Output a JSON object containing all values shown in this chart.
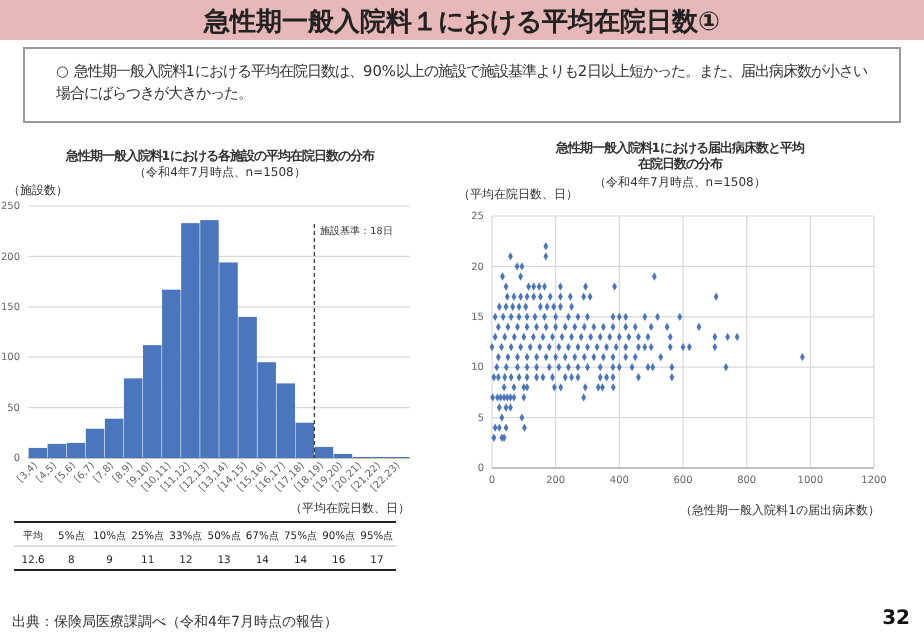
{
  "chart_data": [
    {
      "type": "other",
      "title": "急性期一般入院料１における平均在院日数①",
      "annotations": [
        "○ 急性期一般入院料1における平均在院日数は、90%以上の施設で施設基準よりも2日以上短かった。また、届出病床数が小さい場合にばらつきが大きかった。",
        "出典：保険局医療課調べ（令和4年7月時点の報告）",
        "32"
      ]
    },
    {
      "type": "bar",
      "title": "急性期一般入院料1における各施設の平均在院日数の分布",
      "subtitle": "（令和4年7月時点、n=1508）",
      "ylabel": "（施設数）",
      "xlabel": "（平均在院日数、日）",
      "color": "#4a76be",
      "categories": [
        "[3,4)",
        "[4,5)",
        "[5,6)",
        "[6,7)",
        "[7,8)",
        "[8,9)",
        "[9,10)",
        "[10,11)",
        "[11,12)",
        "[12,13)",
        "[13,14)",
        "[14,15)",
        "[15,16)",
        "[16,17)",
        "[17,18)",
        "[18,19)",
        "[19,20)",
        "[20,21)",
        "[21,22)",
        "[22,23)"
      ],
      "values": [
        10,
        14,
        15,
        29,
        39,
        79,
        112,
        167,
        233,
        236,
        194,
        140,
        95,
        74,
        35,
        11,
        4,
        1,
        1,
        1
      ],
      "ylim": [
        0,
        250
      ],
      "yticks": [
        0,
        50,
        100,
        150,
        200,
        250
      ],
      "grid": "y",
      "ref_lines": [
        {
          "axis": "x",
          "value": "[18,19)",
          "label": "施設基準：18日",
          "line_style": "dashed",
          "color": "#404040"
        }
      ],
      "annotations": [
        "平均",
        "5%点",
        "10%点",
        "25%点",
        "33%点",
        "50%点",
        "67%点",
        "75%点",
        "90%点",
        "95%点",
        "12.6",
        "8",
        "9",
        "11",
        "12",
        "13",
        "14",
        "14",
        "16",
        "17"
      ]
    },
    {
      "type": "scatter",
      "title": "急性期一般入院料1における届出病床数と平均在院日数の分布",
      "subtitle": "（令和4年7月時点、n=1508）",
      "ylabel": "（平均在院日数、日）",
      "xlabel": "（急性期一般入院料1の届出病床数）",
      "color": "#4a76be",
      "marker": "diamond",
      "x": [
        169,
        58,
        169,
        79,
        94,
        33,
        90,
        510,
        44,
        115,
        131,
        148,
        165,
        215,
        294,
        385,
        48,
        69,
        90,
        110,
        131,
        152,
        183,
        215,
        246,
        288,
        308,
        704,
        23,
        44,
        65,
        85,
        106,
        152,
        173,
        194,
        215,
        250,
        10,
        35,
        60,
        85,
        110,
        135,
        165,
        200,
        240,
        270,
        300,
        380,
        400,
        420,
        480,
        520,
        590,
        20,
        50,
        80,
        110,
        140,
        170,
        200,
        230,
        260,
        290,
        320,
        350,
        380,
        420,
        450,
        500,
        550,
        650,
        10,
        40,
        70,
        100,
        130,
        160,
        190,
        220,
        250,
        280,
        310,
        340,
        370,
        400,
        430,
        460,
        490,
        560,
        700,
        740,
        770,
        0,
        30,
        60,
        90,
        120,
        150,
        180,
        210,
        240,
        270,
        300,
        330,
        360,
        390,
        420,
        460,
        480,
        500,
        560,
        600,
        620,
        700,
        20,
        50,
        80,
        110,
        140,
        170,
        200,
        230,
        260,
        290,
        320,
        350,
        380,
        420,
        450,
        530,
        975,
        15,
        45,
        80,
        110,
        140,
        180,
        210,
        240,
        270,
        300,
        340,
        380,
        400,
        440,
        490,
        505,
        565,
        735,
        6,
        20,
        40,
        60,
        85,
        110,
        140,
        160,
        190,
        230,
        250,
        270,
        340,
        360,
        380,
        460,
        565,
        38,
        69,
        100,
        110,
        196,
        216,
        293,
        334,
        347,
        381,
        2,
        17,
        27,
        38,
        48,
        58,
        69,
        100,
        288,
        23,
        44,
        58,
        31,
        94,
        10,
        23,
        44,
        102,
        6,
        31,
        38
      ],
      "values": [
        22,
        21,
        21,
        20,
        20,
        19,
        19,
        19,
        18,
        18,
        18,
        18,
        18,
        18,
        18,
        18,
        17,
        17,
        17,
        17,
        17,
        17,
        17,
        17,
        17,
        17,
        17,
        17,
        16,
        16,
        16,
        16,
        16,
        16,
        16,
        16,
        16,
        16,
        15,
        15,
        15,
        15,
        15,
        15,
        15,
        15,
        15,
        15,
        15,
        15,
        15,
        15,
        15,
        15,
        15,
        14,
        14,
        14,
        14,
        14,
        14,
        14,
        14,
        14,
        14,
        14,
        14,
        14,
        14,
        14,
        14,
        14,
        14,
        13,
        13,
        13,
        13,
        13,
        13,
        13,
        13,
        13,
        13,
        13,
        13,
        13,
        13,
        13,
        13,
        13,
        13,
        13,
        13,
        13,
        12,
        12,
        12,
        12,
        12,
        12,
        12,
        12,
        12,
        12,
        12,
        12,
        12,
        12,
        12,
        12,
        12,
        12,
        12,
        12,
        12,
        12,
        11,
        11,
        11,
        11,
        11,
        11,
        11,
        11,
        11,
        11,
        11,
        11,
        11,
        11,
        11,
        11,
        11,
        10,
        10,
        10,
        10,
        10,
        10,
        10,
        10,
        10,
        10,
        10,
        10,
        10,
        10,
        10,
        10,
        10,
        10,
        9,
        9,
        9,
        9,
        9,
        9,
        9,
        9,
        9,
        9,
        9,
        9,
        9,
        9,
        9,
        9,
        9,
        8,
        8,
        8,
        8,
        8,
        8,
        8,
        8,
        8,
        8,
        7,
        7,
        7,
        7,
        7,
        7,
        7,
        7,
        7,
        6,
        6,
        6,
        5,
        5,
        4,
        4,
        4,
        4,
        3,
        3,
        3
      ],
      "xlim": [
        0,
        1200
      ],
      "xticks": [
        0,
        200,
        400,
        600,
        800,
        1000,
        1200
      ],
      "ylim": [
        0,
        25
      ],
      "yticks": [
        0,
        5,
        10,
        15,
        20,
        25
      ],
      "grid": true
    }
  ]
}
